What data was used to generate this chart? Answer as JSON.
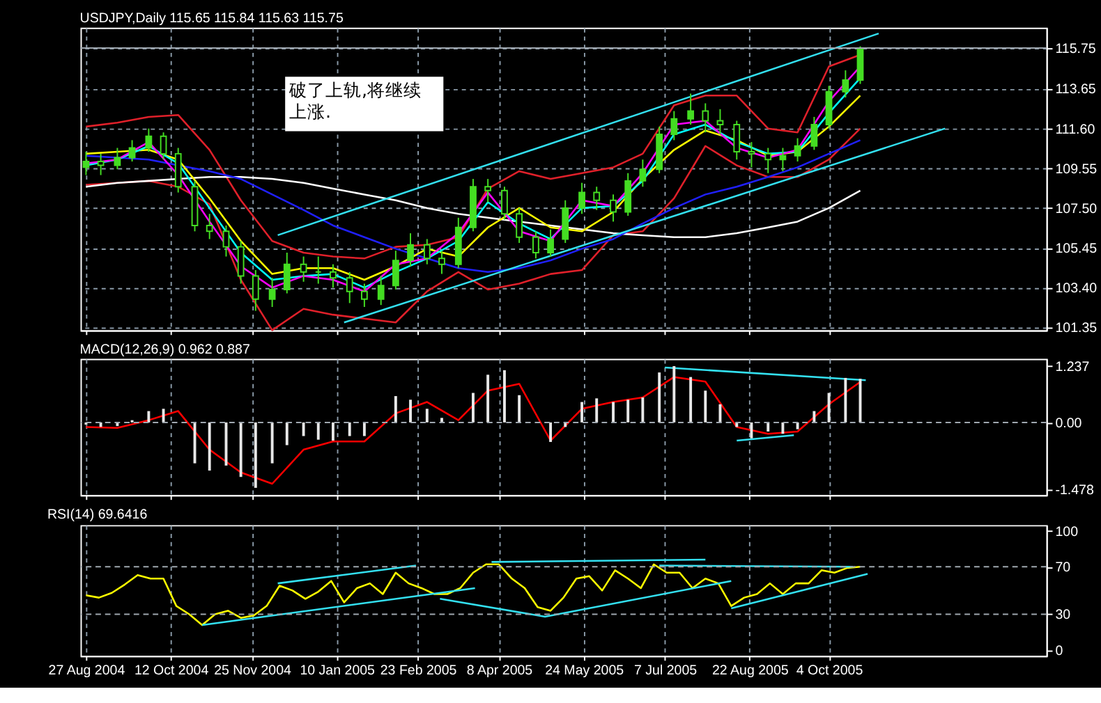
{
  "chart_data": [
    {
      "type": "candlestick",
      "title": "USDJPY,Daily  115.65 115.84 115.63 115.75",
      "color": "#44dd22",
      "x": [
        "2004-08-27",
        "2004-09-04",
        "2004-09-13",
        "2004-09-21",
        "2004-09-30",
        "2004-10-08",
        "2004-10-16",
        "2004-10-25",
        "2004-11-02",
        "2004-11-11",
        "2004-11-19",
        "2004-11-27",
        "2004-12-06",
        "2004-12-14",
        "2004-12-23",
        "2004-12-31",
        "2005-01-08",
        "2005-01-17",
        "2005-01-25",
        "2005-02-03",
        "2005-02-11",
        "2005-02-19",
        "2005-02-28",
        "2005-03-08",
        "2005-03-17",
        "2005-03-25",
        "2005-04-02",
        "2005-04-11",
        "2005-04-19",
        "2005-04-28",
        "2005-05-06",
        "2005-05-14",
        "2005-05-23",
        "2005-05-31",
        "2005-06-09",
        "2005-06-17",
        "2005-06-25",
        "2005-07-04",
        "2005-07-12",
        "2005-07-21",
        "2005-07-29",
        "2005-08-06",
        "2005-08-15",
        "2005-08-23",
        "2005-09-01",
        "2005-09-09",
        "2005-09-17",
        "2005-09-26",
        "2005-10-04",
        "2005-10-13",
        "2005-10-21"
      ],
      "ohlc": [
        [
          109.6,
          110.4,
          109.2,
          109.9
        ],
        [
          109.9,
          110.3,
          109.2,
          109.7
        ],
        [
          109.7,
          110.6,
          109.5,
          110.1
        ],
        [
          110.1,
          111.0,
          109.9,
          110.6
        ],
        [
          110.6,
          111.6,
          110.4,
          111.2
        ],
        [
          111.2,
          111.4,
          110.0,
          110.3
        ],
        [
          110.3,
          110.6,
          108.3,
          108.6
        ],
        [
          108.6,
          108.9,
          106.3,
          106.6
        ],
        [
          106.6,
          107.2,
          105.9,
          106.3
        ],
        [
          106.3,
          106.6,
          105.0,
          105.5
        ],
        [
          105.5,
          105.8,
          103.6,
          104.0
        ],
        [
          104.0,
          104.3,
          102.2,
          102.8
        ],
        [
          102.8,
          103.9,
          102.4,
          103.3
        ],
        [
          103.3,
          105.2,
          103.1,
          104.6
        ],
        [
          104.6,
          105.0,
          103.7,
          104.2
        ],
        [
          104.2,
          105.0,
          103.6,
          104.2
        ],
        [
          104.2,
          104.6,
          103.4,
          103.9
        ],
        [
          103.9,
          104.2,
          102.6,
          103.2
        ],
        [
          103.2,
          103.6,
          102.4,
          102.8
        ],
        [
          102.8,
          104.0,
          102.5,
          103.5
        ],
        [
          103.5,
          105.3,
          103.3,
          104.8
        ],
        [
          104.8,
          106.2,
          104.5,
          105.6
        ],
        [
          105.6,
          105.9,
          104.6,
          104.9
        ],
        [
          104.9,
          105.3,
          104.1,
          104.6
        ],
        [
          104.6,
          107.0,
          104.4,
          106.5
        ],
        [
          106.5,
          109.0,
          106.3,
          108.6
        ],
        [
          108.6,
          109.0,
          107.8,
          108.4
        ],
        [
          108.4,
          108.6,
          106.9,
          107.2
        ],
        [
          107.2,
          107.5,
          105.7,
          106.0
        ],
        [
          106.0,
          106.3,
          104.9,
          105.2
        ],
        [
          105.2,
          106.4,
          105.0,
          105.9
        ],
        [
          105.9,
          107.9,
          105.7,
          107.5
        ],
        [
          107.5,
          108.8,
          107.2,
          108.3
        ],
        [
          108.3,
          108.6,
          107.4,
          107.9
        ],
        [
          107.9,
          108.2,
          106.8,
          107.3
        ],
        [
          107.3,
          109.3,
          107.1,
          108.9
        ],
        [
          108.9,
          110.0,
          108.6,
          109.5
        ],
        [
          109.5,
          111.7,
          109.3,
          111.3
        ],
        [
          111.3,
          112.5,
          111.0,
          112.1
        ],
        [
          112.1,
          113.4,
          111.8,
          112.5
        ],
        [
          112.5,
          112.9,
          111.4,
          112.0
        ],
        [
          112.0,
          112.6,
          111.3,
          111.8
        ],
        [
          111.8,
          112.0,
          110.0,
          110.4
        ],
        [
          110.4,
          110.9,
          109.6,
          110.3
        ],
        [
          110.3,
          110.6,
          109.3,
          110.0
        ],
        [
          110.0,
          110.6,
          109.4,
          110.2
        ],
        [
          110.2,
          111.1,
          109.9,
          110.7
        ],
        [
          110.7,
          112.2,
          110.5,
          111.8
        ],
        [
          111.8,
          113.8,
          111.6,
          113.5
        ],
        [
          113.5,
          114.6,
          113.2,
          114.1
        ],
        [
          114.1,
          115.84,
          113.9,
          115.75
        ]
      ],
      "series": [
        {
          "type": "line",
          "color": "#e0202a",
          "x": [
            "2004-08-27",
            "2004-09-13",
            "2004-09-30",
            "2004-10-16",
            "2004-11-02",
            "2004-11-19",
            "2004-12-06",
            "2004-12-23",
            "2005-01-08",
            "2005-01-25",
            "2005-02-11",
            "2005-02-28",
            "2005-03-17",
            "2005-04-02",
            "2005-04-19",
            "2005-05-06",
            "2005-05-23",
            "2005-06-09",
            "2005-06-25",
            "2005-07-12",
            "2005-07-29",
            "2005-08-15",
            "2005-09-01",
            "2005-09-17",
            "2005-10-04",
            "2005-10-21"
          ],
          "values": [
            111.7,
            111.9,
            112.2,
            112.3,
            110.5,
            107.9,
            105.8,
            105.2,
            105.0,
            104.9,
            105.5,
            105.6,
            106.0,
            108.5,
            109.4,
            109.0,
            109.3,
            109.6,
            110.3,
            112.8,
            113.3,
            113.3,
            111.6,
            111.4,
            114.8,
            115.4
          ]
        },
        {
          "type": "line",
          "color": "#e0202a",
          "x": [
            "2004-08-27",
            "2004-09-13",
            "2004-09-30",
            "2004-10-16",
            "2004-11-02",
            "2004-11-19",
            "2004-12-06",
            "2004-12-23",
            "2005-01-08",
            "2005-01-25",
            "2005-02-11",
            "2005-02-28",
            "2005-03-17",
            "2005-04-02",
            "2005-04-19",
            "2005-05-06",
            "2005-05-23",
            "2005-06-09",
            "2005-06-25",
            "2005-07-12",
            "2005-07-29",
            "2005-08-15",
            "2005-09-01",
            "2005-09-17",
            "2005-10-04",
            "2005-10-21"
          ],
          "values": [
            108.7,
            108.8,
            108.9,
            108.6,
            107.7,
            103.8,
            101.2,
            102.3,
            102.0,
            101.8,
            101.6,
            103.2,
            104.2,
            103.3,
            103.6,
            104.1,
            104.3,
            106.1,
            106.3,
            108.0,
            110.7,
            109.7,
            109.1,
            109.1,
            110.0,
            111.6
          ]
        },
        {
          "type": "line",
          "color": "#ffffff",
          "x": [
            "2004-08-27",
            "2004-09-13",
            "2004-09-30",
            "2004-10-16",
            "2004-11-02",
            "2004-11-19",
            "2004-12-06",
            "2004-12-23",
            "2005-01-08",
            "2005-01-25",
            "2005-02-11",
            "2005-02-28",
            "2005-03-17",
            "2005-04-02",
            "2005-04-19",
            "2005-05-06",
            "2005-05-23",
            "2005-06-09",
            "2005-06-25",
            "2005-07-12",
            "2005-07-29",
            "2005-08-15",
            "2005-09-01",
            "2005-09-17",
            "2005-10-04",
            "2005-10-21"
          ],
          "values": [
            108.6,
            108.8,
            108.9,
            109.0,
            109.1,
            109.1,
            109.0,
            108.8,
            108.5,
            108.2,
            107.9,
            107.5,
            107.2,
            107.0,
            106.8,
            106.6,
            106.4,
            106.2,
            106.1,
            106.0,
            106.0,
            106.2,
            106.5,
            106.8,
            107.5,
            108.4
          ]
        },
        {
          "type": "line",
          "color": "#2020ff",
          "x": [
            "2004-08-27",
            "2004-09-13",
            "2004-09-30",
            "2004-10-16",
            "2004-11-02",
            "2004-11-19",
            "2004-12-06",
            "2004-12-23",
            "2005-01-08",
            "2005-01-25",
            "2005-02-11",
            "2005-02-28",
            "2005-03-17",
            "2005-04-02",
            "2005-04-19",
            "2005-05-06",
            "2005-05-23",
            "2005-06-09",
            "2005-06-25",
            "2005-07-12",
            "2005-07-29",
            "2005-08-15",
            "2005-09-01",
            "2005-09-17",
            "2005-10-04",
            "2005-10-21"
          ],
          "values": [
            110.2,
            110.1,
            110.0,
            109.7,
            109.4,
            109.0,
            108.2,
            107.4,
            106.6,
            106.0,
            105.4,
            104.9,
            104.4,
            104.2,
            104.4,
            104.8,
            105.4,
            105.9,
            106.7,
            107.5,
            108.2,
            108.6,
            109.1,
            109.6,
            110.3,
            111.0
          ]
        },
        {
          "type": "line",
          "color": "#ffff00",
          "x": [
            "2004-08-27",
            "2004-09-13",
            "2004-09-30",
            "2004-10-16",
            "2004-11-02",
            "2004-11-19",
            "2004-12-06",
            "2004-12-23",
            "2005-01-08",
            "2005-01-25",
            "2005-02-11",
            "2005-02-28",
            "2005-03-17",
            "2005-04-02",
            "2005-04-19",
            "2005-05-06",
            "2005-05-23",
            "2005-06-09",
            "2005-06-25",
            "2005-07-12",
            "2005-07-29",
            "2005-08-15",
            "2005-09-01",
            "2005-09-17",
            "2005-10-04",
            "2005-10-21"
          ],
          "values": [
            110.3,
            110.4,
            110.5,
            110.0,
            108.0,
            105.8,
            104.1,
            104.4,
            104.4,
            103.8,
            104.5,
            105.4,
            105.0,
            106.5,
            107.5,
            106.5,
            106.3,
            107.3,
            109.0,
            110.5,
            111.5,
            111.0,
            110.2,
            110.4,
            111.7,
            113.3
          ]
        },
        {
          "type": "line",
          "color": "#00ffff",
          "x": [
            "2004-08-27",
            "2004-09-13",
            "2004-09-30",
            "2004-10-16",
            "2004-11-02",
            "2004-11-19",
            "2004-12-06",
            "2004-12-23",
            "2005-01-08",
            "2005-01-25",
            "2005-02-11",
            "2005-02-28",
            "2005-03-17",
            "2005-04-02",
            "2005-04-19",
            "2005-05-06",
            "2005-05-23",
            "2005-06-09",
            "2005-06-25",
            "2005-07-12",
            "2005-07-29",
            "2005-08-15",
            "2005-09-01",
            "2005-09-17",
            "2005-10-04",
            "2005-10-21"
          ],
          "values": [
            109.7,
            110.0,
            110.7,
            109.8,
            107.5,
            105.2,
            103.8,
            104.0,
            104.1,
            103.4,
            104.2,
            104.9,
            105.8,
            107.8,
            106.7,
            105.9,
            107.5,
            107.6,
            108.9,
            111.3,
            111.8,
            110.9,
            110.3,
            110.4,
            112.4,
            114.2
          ]
        },
        {
          "type": "line",
          "color": "#ff00ff",
          "x": [
            "2004-08-27",
            "2004-09-13",
            "2004-09-30",
            "2004-10-16",
            "2004-11-02",
            "2004-11-19",
            "2004-12-06",
            "2004-12-23",
            "2005-01-08",
            "2005-01-25",
            "2005-02-11",
            "2005-02-28",
            "2005-03-17",
            "2005-04-02",
            "2005-04-19",
            "2005-05-06",
            "2005-05-23",
            "2005-06-09",
            "2005-06-25",
            "2005-07-12",
            "2005-07-29",
            "2005-08-15",
            "2005-09-01",
            "2005-09-17",
            "2005-10-04",
            "2005-10-21"
          ],
          "values": [
            109.8,
            110.0,
            110.9,
            109.2,
            106.8,
            104.5,
            103.4,
            104.0,
            103.8,
            103.2,
            104.6,
            104.9,
            106.2,
            108.3,
            106.3,
            105.8,
            107.9,
            107.6,
            109.3,
            111.8,
            112.0,
            110.6,
            110.1,
            110.5,
            113.0,
            114.8
          ]
        },
        {
          "type": "line",
          "color": "#33e0f0",
          "x": [
            "2004-12-09",
            "2005-10-31"
          ],
          "values": [
            106.1,
            116.5
          ]
        },
        {
          "type": "line",
          "color": "#33e0f0",
          "x": [
            "2005-01-14",
            "2005-12-06"
          ],
          "values": [
            101.6,
            111.6
          ]
        }
      ],
      "xlim": [
        "2004-08-24",
        "2006-01-30"
      ],
      "xticks": [
        {
          "value": "2004-08-27",
          "label": null
        },
        {
          "value": "2004-10-12",
          "label": null
        },
        {
          "value": "2004-11-25",
          "label": null
        },
        {
          "value": "2005-01-10",
          "label": null
        },
        {
          "value": "2005-02-23",
          "label": null
        },
        {
          "value": "2005-04-08",
          "label": null
        },
        {
          "value": "2005-05-24",
          "label": null
        },
        {
          "value": "2005-07-07",
          "label": null
        },
        {
          "value": "2005-08-22",
          "label": null
        },
        {
          "value": "2005-10-04",
          "label": null
        }
      ],
      "ylim": [
        101.2,
        116.8
      ],
      "yticks": [
        101.35,
        {
          "value": 103.4,
          "label": "103.40"
        },
        105.45,
        {
          "value": 107.5,
          "label": "107.50"
        },
        109.55,
        {
          "value": 111.6,
          "label": "111.60"
        },
        113.65,
        115.75
      ],
      "grid": true,
      "tick_labels": "y",
      "ref_lines": [
        {
          "axis": "y",
          "value": 115.75,
          "color": "#a0a8b0",
          "line_style": "solid"
        }
      ],
      "annotations": [
        "破了上轨,将继续上涨."
      ]
    },
    {
      "type": "bar",
      "title": "MACD(12,26,9) 0.962 0.887",
      "series": [
        {
          "type": "bar",
          "color": "#e8e8e8",
          "x": [
            "2004-08-27",
            "2004-09-04",
            "2004-09-13",
            "2004-09-21",
            "2004-09-30",
            "2004-10-08",
            "2004-10-16",
            "2004-10-25",
            "2004-11-02",
            "2004-11-11",
            "2004-11-19",
            "2004-11-27",
            "2004-12-06",
            "2004-12-14",
            "2004-12-23",
            "2004-12-31",
            "2005-01-08",
            "2005-01-17",
            "2005-01-25",
            "2005-02-03",
            "2005-02-11",
            "2005-02-19",
            "2005-02-28",
            "2005-03-08",
            "2005-03-17",
            "2005-03-25",
            "2005-04-02",
            "2005-04-11",
            "2005-04-19",
            "2005-04-28",
            "2005-05-06",
            "2005-05-14",
            "2005-05-23",
            "2005-05-31",
            "2005-06-09",
            "2005-06-17",
            "2005-06-25",
            "2005-07-04",
            "2005-07-12",
            "2005-07-21",
            "2005-07-29",
            "2005-08-06",
            "2005-08-15",
            "2005-08-23",
            "2005-09-01",
            "2005-09-09",
            "2005-09-17",
            "2005-09-26",
            "2005-10-04",
            "2005-10-13",
            "2005-10-21"
          ],
          "values": [
            -0.05,
            -0.1,
            -0.08,
            0.05,
            0.25,
            0.3,
            0.0,
            -0.9,
            -1.06,
            -0.95,
            -1.2,
            -1.44,
            -0.9,
            -0.5,
            -0.3,
            -0.38,
            -0.4,
            -0.3,
            -0.3,
            0.0,
            0.58,
            0.5,
            0.3,
            0.1,
            0.0,
            0.65,
            1.05,
            1.15,
            0.6,
            0.0,
            -0.43,
            -0.1,
            0.45,
            0.53,
            0.45,
            0.5,
            0.55,
            1.1,
            1.24,
            1.0,
            0.7,
            0.4,
            -0.1,
            -0.35,
            -0.2,
            -0.25,
            -0.15,
            0.25,
            0.65,
            0.98,
            0.96
          ]
        },
        {
          "type": "line",
          "color": "#ff0000",
          "x": [
            "2004-08-27",
            "2004-09-13",
            "2004-09-30",
            "2004-10-16",
            "2004-11-02",
            "2004-11-19",
            "2004-12-06",
            "2004-12-23",
            "2005-01-08",
            "2005-01-25",
            "2005-02-11",
            "2005-02-28",
            "2005-03-17",
            "2005-04-02",
            "2005-04-19",
            "2005-05-06",
            "2005-05-23",
            "2005-06-09",
            "2005-06-25",
            "2005-07-12",
            "2005-07-29",
            "2005-08-15",
            "2005-09-01",
            "2005-09-17",
            "2005-10-04",
            "2005-10-21"
          ],
          "values": [
            -0.1,
            -0.12,
            0.05,
            0.25,
            -0.6,
            -1.1,
            -1.35,
            -0.6,
            -0.42,
            -0.42,
            0.2,
            0.45,
            0.05,
            0.7,
            0.85,
            -0.4,
            0.3,
            0.45,
            0.55,
            1.0,
            0.9,
            -0.1,
            -0.25,
            -0.2,
            0.4,
            0.89
          ]
        },
        {
          "type": "line",
          "color": "#33e0f0",
          "x": [
            "2005-07-07",
            "2005-10-24"
          ],
          "values": [
            1.21,
            0.93
          ]
        },
        {
          "type": "line",
          "color": "#33e0f0",
          "x": [
            "2005-08-15",
            "2005-09-15"
          ],
          "values": [
            -0.4,
            -0.28
          ]
        }
      ],
      "xlim": [
        "2004-08-24",
        "2006-01-30"
      ],
      "xticks": [
        {
          "value": "2004-08-27",
          "label": null
        },
        {
          "value": "2004-10-12",
          "label": null
        },
        {
          "value": "2004-11-25",
          "label": null
        },
        {
          "value": "2005-01-10",
          "label": null
        },
        {
          "value": "2005-02-23",
          "label": null
        },
        {
          "value": "2005-04-08",
          "label": null
        },
        {
          "value": "2005-05-24",
          "label": null
        },
        {
          "value": "2005-07-07",
          "label": null
        },
        {
          "value": "2005-08-22",
          "label": null
        },
        {
          "value": "2005-10-04",
          "label": null
        }
      ],
      "ylim": [
        -1.6,
        1.4
      ],
      "yticks": [
        -1.478,
        {
          "value": 0,
          "label": "0.00"
        },
        1.237
      ],
      "grid": "x",
      "tick_labels": "y",
      "ref_lines": [
        {
          "axis": "y",
          "value": 0,
          "color": "#a0a8b0",
          "line_style": "dashed"
        }
      ]
    },
    {
      "type": "line",
      "title": "RSI(14) 69.6416",
      "series": [
        {
          "type": "line",
          "color": "#ffff00",
          "x": [
            "2004-08-27",
            "2004-09-03",
            "2004-09-10",
            "2004-09-17",
            "2004-09-24",
            "2004-10-01",
            "2004-10-08",
            "2004-10-15",
            "2004-10-22",
            "2004-10-29",
            "2004-11-05",
            "2004-11-12",
            "2004-11-19",
            "2004-11-26",
            "2004-12-03",
            "2004-12-10",
            "2004-12-17",
            "2004-12-24",
            "2004-12-31",
            "2005-01-07",
            "2005-01-14",
            "2005-01-21",
            "2005-01-28",
            "2005-02-04",
            "2005-02-11",
            "2005-02-18",
            "2005-02-25",
            "2005-03-04",
            "2005-03-11",
            "2005-03-18",
            "2005-03-25",
            "2005-04-01",
            "2005-04-08",
            "2005-04-15",
            "2005-04-22",
            "2005-04-29",
            "2005-05-06",
            "2005-05-13",
            "2005-05-20",
            "2005-05-27",
            "2005-06-03",
            "2005-06-10",
            "2005-06-17",
            "2005-06-24",
            "2005-07-01",
            "2005-07-08",
            "2005-07-15",
            "2005-07-22",
            "2005-07-29",
            "2005-08-05",
            "2005-08-12",
            "2005-08-19",
            "2005-08-26",
            "2005-09-02",
            "2005-09-09",
            "2005-09-16",
            "2005-09-23",
            "2005-09-30",
            "2005-10-07",
            "2005-10-14",
            "2005-10-21"
          ],
          "values": [
            46,
            44,
            48,
            55,
            63,
            60,
            60,
            37,
            30,
            21,
            30,
            33,
            27,
            29,
            37,
            54,
            50,
            43,
            49,
            58,
            40,
            52,
            56,
            47,
            65,
            56,
            52,
            47,
            47,
            52,
            65,
            72,
            72,
            60,
            52,
            36,
            33,
            44,
            60,
            62,
            50,
            67,
            60,
            52,
            72,
            65,
            65,
            52,
            60,
            56,
            37,
            44,
            47,
            56,
            47,
            56,
            56,
            67,
            65,
            69,
            70
          ]
        },
        {
          "type": "line",
          "color": "#33e0f0",
          "x": [
            "2004-12-09",
            "2005-02-22"
          ],
          "values": [
            56,
            71
          ]
        },
        {
          "type": "line",
          "color": "#33e0f0",
          "x": [
            "2004-10-29",
            "2005-03-26"
          ],
          "values": [
            21,
            52
          ]
        },
        {
          "type": "line",
          "color": "#33e0f0",
          "x": [
            "2005-03-07",
            "2005-05-03",
            "2005-08-12"
          ],
          "values": [
            43,
            28,
            58
          ]
        },
        {
          "type": "line",
          "color": "#33e0f0",
          "x": [
            "2005-04-04",
            "2005-07-29"
          ],
          "values": [
            74,
            76
          ]
        },
        {
          "type": "line",
          "color": "#33e0f0",
          "x": [
            "2005-07-04",
            "2005-10-17"
          ],
          "values": [
            71,
            70
          ]
        },
        {
          "type": "line",
          "color": "#33e0f0",
          "x": [
            "2005-08-12",
            "2005-10-25"
          ],
          "values": [
            35,
            64
          ]
        }
      ],
      "xlim": [
        "2004-08-24",
        "2006-01-30"
      ],
      "xticks": [
        {
          "value": "2004-08-27",
          "label": "27 Aug 2004"
        },
        {
          "value": "2004-10-12",
          "label": "12 Oct 2004"
        },
        {
          "value": "2004-11-25",
          "label": "25 Nov 2004"
        },
        {
          "value": "2005-01-10",
          "label": "10 Jan 2005"
        },
        {
          "value": "2005-02-23",
          "label": "23 Feb 2005"
        },
        {
          "value": "2005-04-08",
          "label": "8 Apr 2005"
        },
        {
          "value": "2005-05-24",
          "label": "24 May 2005"
        },
        {
          "value": "2005-07-07",
          "label": "7 Jul 2005"
        },
        {
          "value": "2005-08-22",
          "label": "22 Aug 2005"
        },
        {
          "value": "2005-10-04",
          "label": "4 Oct 2005"
        }
      ],
      "ylim": [
        -5,
        105
      ],
      "yticks": [
        0,
        30,
        70,
        100
      ],
      "grid": "x",
      "ref_lines": [
        {
          "axis": "y",
          "value": 70,
          "color": "#a0a8b0",
          "line_style": "dashed"
        },
        {
          "axis": "y",
          "value": 30,
          "color": "#a0a8b0",
          "line_style": "dashed"
        }
      ]
    }
  ]
}
